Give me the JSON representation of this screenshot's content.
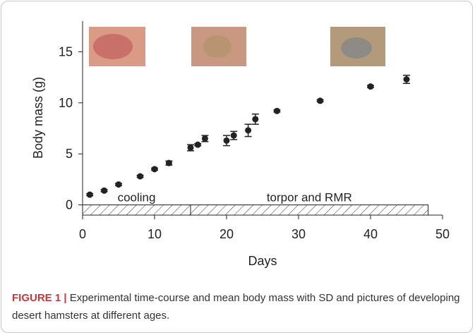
{
  "chart_data": {
    "type": "scatter",
    "xlabel": "Days",
    "ylabel": "Body mass (g)",
    "x": [
      1,
      3,
      5,
      8,
      10,
      12,
      15,
      16,
      17,
      20,
      21,
      23,
      24,
      27,
      33,
      40,
      45
    ],
    "values": [
      1.0,
      1.4,
      2.0,
      2.8,
      3.5,
      4.1,
      5.6,
      5.9,
      6.5,
      6.3,
      6.8,
      7.3,
      8.4,
      9.2,
      10.2,
      11.6,
      12.3
    ],
    "errors": [
      0.1,
      0.1,
      0.1,
      0.1,
      0.1,
      0.2,
      0.3,
      0.1,
      0.3,
      0.5,
      0.4,
      0.6,
      0.5,
      0.1,
      0.1,
      0.1,
      0.4
    ],
    "color": "#222222",
    "xlim": [
      0,
      50
    ],
    "xticks": [
      0,
      10,
      20,
      30,
      40,
      50
    ],
    "ylim": [
      -1,
      18
    ],
    "yticks": [
      0,
      5,
      10,
      15
    ],
    "periods": [
      {
        "label": "cooling",
        "start": 0,
        "end": 15
      },
      {
        "label": "torpor and RMR",
        "start": 15,
        "end": 48
      }
    ]
  },
  "caption": {
    "label": "FIGURE 1 |",
    "text": "Experimental time-course and mean body mass with SD and pictures of developing desert hamsters at different ages."
  }
}
